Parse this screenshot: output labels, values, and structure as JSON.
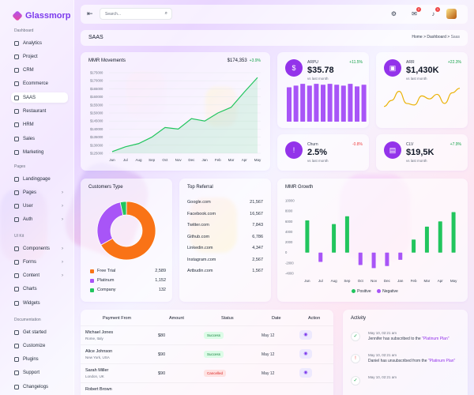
{
  "brand": {
    "name": "Glassmorp"
  },
  "sidebar": {
    "sections": [
      {
        "title": "Dashboard",
        "items": [
          {
            "label": "Analytics"
          },
          {
            "label": "Project"
          },
          {
            "label": "CRM"
          },
          {
            "label": "Ecommerce"
          },
          {
            "label": "SAAS",
            "active": true
          },
          {
            "label": "Restaurant"
          },
          {
            "label": "HRM"
          },
          {
            "label": "Sales"
          },
          {
            "label": "Marketing"
          }
        ]
      },
      {
        "title": "Pages",
        "items": [
          {
            "label": "Landingpage"
          },
          {
            "label": "Pages",
            "chevron": true
          },
          {
            "label": "User",
            "chevron": true
          },
          {
            "label": "Auth",
            "chevron": true
          }
        ]
      },
      {
        "title": "UI Kit",
        "items": [
          {
            "label": "Components",
            "chevron": true
          },
          {
            "label": "Forms",
            "chevron": true
          },
          {
            "label": "Content",
            "chevron": true
          },
          {
            "label": "Charts"
          },
          {
            "label": "Widgets"
          }
        ]
      },
      {
        "title": "Documentation",
        "items": [
          {
            "label": "Get started"
          },
          {
            "label": "Customize"
          },
          {
            "label": "Plugins"
          },
          {
            "label": "Support"
          },
          {
            "label": "Changelogs"
          }
        ]
      }
    ]
  },
  "topbar": {
    "search_placeholder": "Search...",
    "mail_badge": "2",
    "bell_badge": "1"
  },
  "breadcrumb": {
    "title": "SAAS",
    "items": [
      "Home",
      "Dashboard",
      "Saas"
    ]
  },
  "mmr_movements": {
    "title": "MMR Movements",
    "value": "$174,353",
    "change": "+3.9%",
    "chart_data": {
      "type": "area",
      "categories": [
        "Jun",
        "Jul",
        "Aug",
        "Sep",
        "Oct",
        "Nov",
        "Dec",
        "Jan",
        "Feb",
        "Mar",
        "Apr",
        "May"
      ],
      "y_ticks": [
        "$175000",
        "$170000",
        "$165000",
        "$160000",
        "$155000",
        "$150000",
        "$145000",
        "$140000",
        "$135000",
        "$130000",
        "$125000"
      ],
      "values": [
        126000,
        129000,
        131000,
        135000,
        141000,
        140000,
        146500,
        145000,
        150000,
        153500,
        163000,
        172000
      ],
      "ylim": [
        125000,
        175000
      ],
      "color": "#22c55e"
    }
  },
  "stats": [
    {
      "label": "ARPU",
      "value": "$35.78",
      "sub": "vs last month",
      "change": "+11.5%",
      "positive": true,
      "icon": "dollar-icon"
    },
    {
      "label": "ARR",
      "value": "$1,430K",
      "sub": "vs last month",
      "change": "+22.3%",
      "positive": true,
      "icon": "money-icon"
    },
    {
      "label": "Churn",
      "value": "2.5%",
      "sub": "vs last month",
      "change": "-0.8%",
      "positive": false,
      "icon": "alert-icon"
    },
    {
      "label": "CLV",
      "value": "$19,5K",
      "sub": "vs last month",
      "change": "+7.9%",
      "positive": true,
      "icon": "wallet-icon"
    }
  ],
  "arpu_bars": {
    "chart_data": {
      "type": "bar",
      "values": [
        40,
        42,
        44,
        42,
        44,
        43,
        44,
        43,
        42,
        44,
        41,
        43
      ],
      "ylim": [
        0,
        46
      ],
      "color": "#a855f7"
    }
  },
  "arr_line": {
    "chart_data": {
      "type": "line",
      "values": [
        20,
        28,
        40,
        24,
        22,
        34,
        30,
        36,
        24,
        38,
        44
      ],
      "ylim": [
        0,
        50
      ],
      "color": "#eab308"
    }
  },
  "customers_type": {
    "title": "Customers Type",
    "chart_data": {
      "type": "pie",
      "labels": [
        "Free Trial",
        "Platinum",
        "Company"
      ],
      "values": [
        2589,
        1152,
        132
      ],
      "colors": [
        "#f97316",
        "#a855f7",
        "#22c55e"
      ]
    },
    "legend": [
      {
        "label": "Free Trial",
        "value": "2,589",
        "color": "#f97316"
      },
      {
        "label": "Platinum",
        "value": "1,152",
        "color": "#a855f7"
      },
      {
        "label": "Company",
        "value": "132",
        "color": "#22c55e"
      }
    ]
  },
  "top_referral": {
    "title": "Top Referral",
    "rows": [
      {
        "site": "Google.com",
        "value": "21,567"
      },
      {
        "site": "Facebook.com",
        "value": "16,567"
      },
      {
        "site": "Twitter.com",
        "value": "7,843"
      },
      {
        "site": "Github.com",
        "value": "6,786"
      },
      {
        "site": "Linkedin.com",
        "value": "4,347"
      },
      {
        "site": "Instagram.com",
        "value": "2,567"
      },
      {
        "site": "Artbudin.com",
        "value": "1,567"
      }
    ]
  },
  "mmr_growth": {
    "title": "MMR Growth",
    "chart_data": {
      "type": "bar",
      "categories": [
        "Jun",
        "Jul",
        "Aug",
        "Sep",
        "Oct",
        "Nov",
        "Dec",
        "Jan",
        "Feb",
        "Mar",
        "Apr",
        "May"
      ],
      "y_ticks": [
        "10000",
        "8000",
        "6000",
        "4000",
        "2000",
        "0",
        "-2000",
        "-4000"
      ],
      "ylim": [
        -4000,
        10000
      ],
      "series": [
        {
          "name": "Positive",
          "values": [
            6200,
            0,
            5500,
            7000,
            0,
            0,
            0,
            0,
            2500,
            5000,
            6000,
            7800
          ],
          "color": "#22c55e"
        },
        {
          "name": "Negative",
          "values": [
            0,
            -1800,
            0,
            0,
            -2400,
            -3000,
            -2600,
            -1400,
            0,
            0,
            0,
            0
          ],
          "color": "#a855f7"
        }
      ]
    },
    "legend": [
      "Positive",
      "Negative"
    ]
  },
  "payments": {
    "headers": [
      "Payment From",
      "Amount",
      "Status",
      "Date",
      "Action"
    ],
    "rows": [
      {
        "name": "Michael Jones",
        "loc": "Rome, Italy",
        "amount": "$80",
        "status": "Success",
        "ok": true,
        "date": "May 12"
      },
      {
        "name": "Alice Johnson",
        "loc": "New York, USA",
        "amount": "$90",
        "status": "Success",
        "ok": true,
        "date": "May 12"
      },
      {
        "name": "Sarah Miller",
        "loc": "London, UK",
        "amount": "$90",
        "status": "Cancelled",
        "ok": false,
        "date": "May 12"
      },
      {
        "name": "Robert Brown",
        "loc": "",
        "amount": "",
        "status": "",
        "ok": true,
        "date": ""
      }
    ]
  },
  "activity": {
    "title": "Activity",
    "items": [
      {
        "time": "May 10, 02:21 am",
        "pre": "Jennifer has subscribed to the ",
        "hl": "\"Platinum Plan\"",
        "icon": "check-icon"
      },
      {
        "time": "May 10, 02:21 am",
        "pre": "Daniel has unsubscribed from the ",
        "hl": "\"Platinum Plan\"",
        "icon": "alert-icon"
      },
      {
        "time": "May 10, 02:21 am",
        "pre": "",
        "hl": "",
        "icon": "check-icon"
      }
    ]
  }
}
